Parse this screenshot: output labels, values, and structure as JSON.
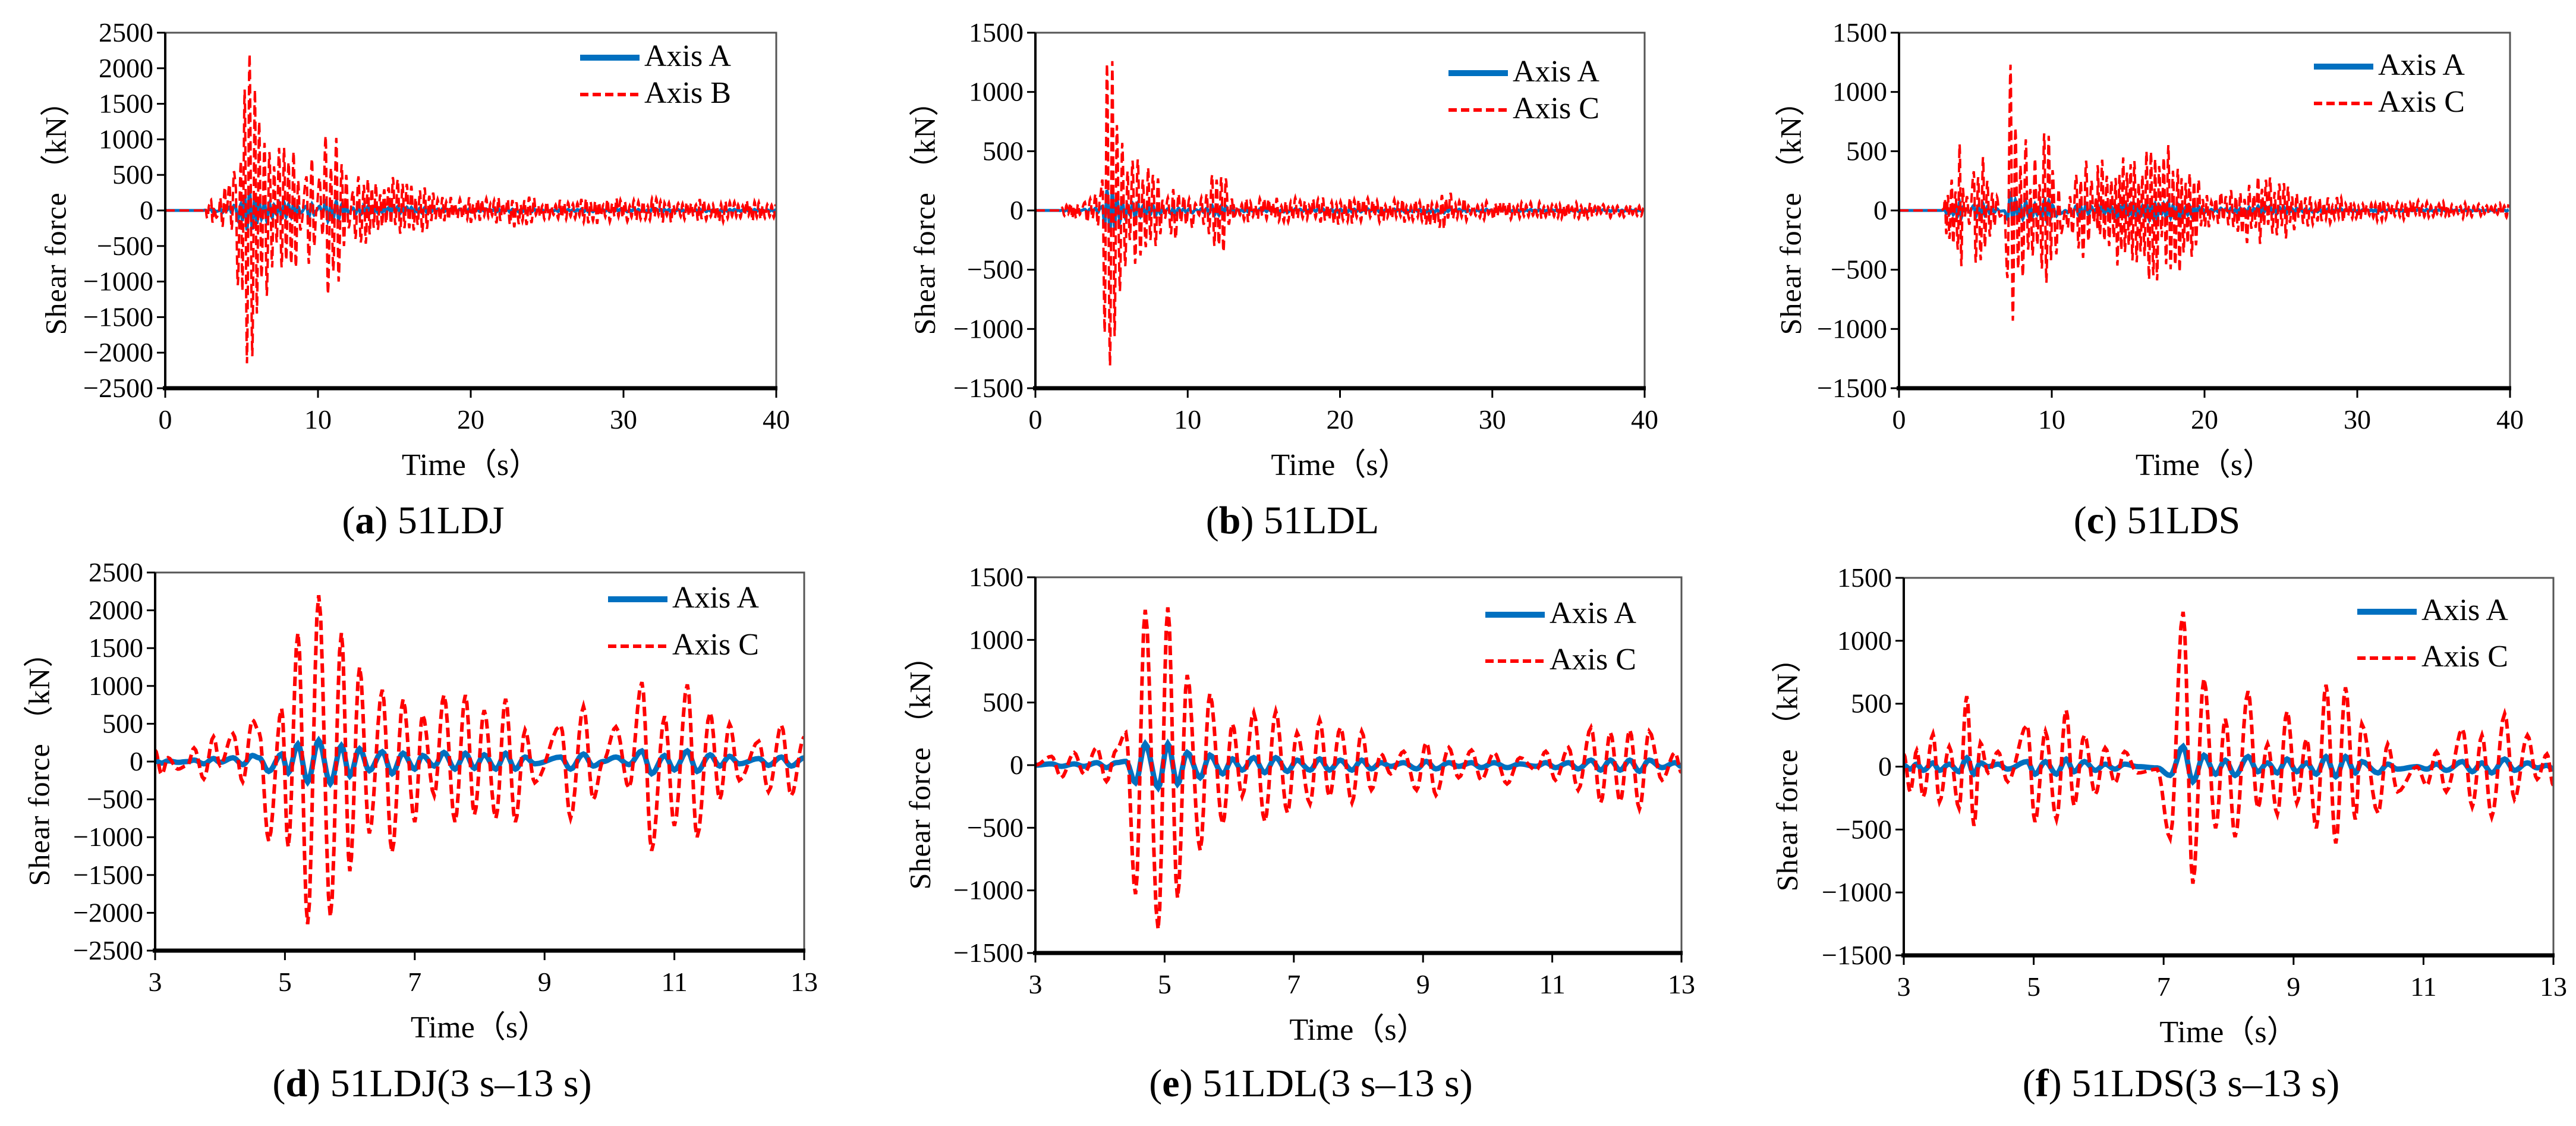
{
  "colors": {
    "axis_a": "#0070c0",
    "axis_c": "#ff0000",
    "frame": "#000000"
  },
  "chart_data": [
    {
      "id": "a",
      "type": "line",
      "caption": {
        "letter": "a",
        "text": "51LDJ"
      },
      "xlabel": "Time（s）",
      "ylabel": "Shear force （kN）",
      "xlim": [
        0,
        40
      ],
      "ylim": [
        -2500,
        2500
      ],
      "xticks": [
        0,
        10,
        20,
        30,
        40
      ],
      "yticks": [
        2500,
        2000,
        1500,
        1000,
        500,
        0,
        -500,
        -1000,
        -1500,
        -2000,
        -2500
      ],
      "legend": {
        "position": "top-right",
        "entries": [
          "Axis A",
          "Axis B"
        ]
      },
      "detail_from": "d",
      "series": [
        {
          "name": "Axis A",
          "style": "solid",
          "amplitude_ratio": 0.13
        },
        {
          "name": "Axis B",
          "style": "dashed",
          "envelope_before": [
            [
              0,
              0
            ],
            [
              2.5,
              0
            ],
            [
              2.7,
              150
            ],
            [
              3,
              150
            ]
          ],
          "envelope_after": [
            [
              13,
              500
            ],
            [
              15,
              500
            ],
            [
              17,
              350
            ],
            [
              18,
              200
            ],
            [
              22,
              180
            ],
            [
              23,
              250
            ],
            [
              25,
              130
            ],
            [
              26,
              200
            ],
            [
              40,
              150
            ]
          ],
          "frequency_hz": 3.5
        }
      ]
    },
    {
      "id": "b",
      "type": "line",
      "caption": {
        "letter": "b",
        "text": "51LDL"
      },
      "xlabel": "Time（s）",
      "ylabel": "Shear force （kN）",
      "xlim": [
        0,
        40
      ],
      "ylim": [
        -1500,
        1500
      ],
      "xticks": [
        0,
        10,
        20,
        30,
        40
      ],
      "yticks": [
        1500,
        1000,
        500,
        0,
        -500,
        -1000,
        -1500
      ],
      "legend": {
        "position": "top-right",
        "entries": [
          "Axis A",
          "Axis C"
        ]
      },
      "detail_from": "e",
      "series": [
        {
          "name": "Axis A",
          "style": "solid",
          "amplitude_ratio": 0.14
        },
        {
          "name": "Axis C",
          "style": "dashed",
          "envelope_before": [
            [
              0,
              0
            ],
            [
              1.5,
              0
            ],
            [
              2,
              60
            ],
            [
              3,
              80
            ]
          ],
          "envelope_after": [
            [
              13,
              100
            ],
            [
              20,
              120
            ],
            [
              25,
              100
            ],
            [
              27,
              170
            ],
            [
              29,
              80
            ],
            [
              40,
              60
            ]
          ],
          "frequency_hz": 3.5
        }
      ]
    },
    {
      "id": "c",
      "type": "line",
      "caption": {
        "letter": "c",
        "text": "51LDS"
      },
      "xlabel": "Time（s）",
      "ylabel": "Shear force （kN）",
      "xlim": [
        0,
        40
      ],
      "ylim": [
        -1500,
        1500
      ],
      "xticks": [
        0,
        10,
        20,
        30,
        40
      ],
      "yticks": [
        1500,
        1000,
        500,
        0,
        -500,
        -1000,
        -1500
      ],
      "legend": {
        "position": "top-right",
        "entries": [
          "Axis A",
          "Axis C"
        ]
      },
      "detail_from": "f",
      "series": [
        {
          "name": "Axis A",
          "style": "solid",
          "amplitude_ratio": 0.13
        },
        {
          "name": "Axis C",
          "style": "dashed",
          "envelope_before": [
            [
              0,
              0
            ],
            [
              2.9,
              0
            ],
            [
              3,
              100
            ]
          ],
          "envelope_after": [
            [
              13,
              400
            ],
            [
              14,
              600
            ],
            [
              15,
              450
            ],
            [
              16,
              650
            ],
            [
              17,
              650
            ],
            [
              18,
              550
            ],
            [
              19,
              500
            ],
            [
              20,
              150
            ],
            [
              22,
              200
            ],
            [
              23,
              300
            ],
            [
              25,
              300
            ],
            [
              26,
              150
            ],
            [
              30,
              100
            ],
            [
              40,
              60
            ]
          ],
          "frequency_hz": 3.5
        }
      ]
    },
    {
      "id": "d",
      "type": "line",
      "caption": {
        "letter": "d",
        "text": "51LDJ(3 s–13 s)"
      },
      "xlabel": "Time（s）",
      "ylabel": "Shear force （kN）",
      "xlim": [
        3,
        13
      ],
      "ylim": [
        -2500,
        2500
      ],
      "xticks": [
        3,
        5,
        7,
        9,
        11,
        13
      ],
      "yticks": [
        2500,
        2000,
        1500,
        1000,
        500,
        0,
        -500,
        -1000,
        -1500,
        -2000,
        -2500
      ],
      "legend": {
        "position": "top-right",
        "entries": [
          "Axis A",
          "Axis C"
        ]
      },
      "t": [
        3.0,
        3.1,
        3.2,
        3.35,
        3.5,
        3.6,
        3.75,
        3.9,
        4.0,
        4.2,
        4.35,
        4.5,
        4.6,
        4.75,
        4.95,
        5.05,
        5.2,
        5.35,
        5.52,
        5.7,
        5.87,
        6.0,
        6.15,
        6.3,
        6.5,
        6.65,
        6.82,
        7.0,
        7.12,
        7.3,
        7.45,
        7.62,
        7.78,
        7.92,
        8.07,
        8.25,
        8.4,
        8.55,
        8.7,
        8.85,
        9.25,
        9.4,
        9.6,
        9.75,
        9.9,
        10.1,
        10.3,
        10.5,
        10.65,
        10.85,
        11.0,
        11.2,
        11.35,
        11.55,
        11.7,
        11.85,
        12.0,
        12.3,
        12.45,
        12.65,
        12.8,
        13.0
      ],
      "series": [
        {
          "name": "Axis A",
          "style": "solid",
          "values": [
            10,
            -20,
            10,
            -10,
            0,
            20,
            -30,
            40,
            -10,
            50,
            -40,
            80,
            50,
            -130,
            100,
            -150,
            230,
            -270,
            280,
            -290,
            210,
            -190,
            170,
            -120,
            130,
            -160,
            110,
            -100,
            80,
            -60,
            120,
            -100,
            110,
            -90,
            90,
            -100,
            110,
            -100,
            60,
            -30,
            60,
            -100,
            100,
            -60,
            0,
            60,
            -40,
            140,
            -160,
            80,
            -110,
            140,
            -130,
            90,
            -60,
            70,
            -30,
            40,
            -50,
            60,
            -60,
            50
          ]
        },
        {
          "name": "Axis C",
          "style": "dashed",
          "values": [
            150,
            -170,
            50,
            -100,
            -50,
            180,
            -230,
            330,
            -50,
            370,
            -270,
            550,
            400,
            -1050,
            700,
            -1130,
            1700,
            -2150,
            2200,
            -2050,
            1700,
            -1450,
            1250,
            -950,
            950,
            -1200,
            820,
            -800,
            620,
            -450,
            880,
            -800,
            880,
            -700,
            680,
            -750,
            830,
            -800,
            420,
            -280,
            480,
            -750,
            730,
            -500,
            0,
            460,
            -350,
            1050,
            -1180,
            600,
            -850,
            1020,
            -1000,
            650,
            -500,
            500,
            -250,
            270,
            -400,
            480,
            -450,
            330
          ]
        }
      ]
    },
    {
      "id": "e",
      "type": "line",
      "caption": {
        "letter": "e",
        "text": "51LDL(3 s–13 s)"
      },
      "xlabel": "Time（s）",
      "ylabel": "Shear force （kN）",
      "xlim": [
        3,
        13
      ],
      "ylim": [
        -1500,
        1500
      ],
      "xticks": [
        3,
        5,
        7,
        9,
        11,
        13
      ],
      "yticks": [
        1500,
        1000,
        500,
        0,
        -500,
        -1000,
        -1500
      ],
      "legend": {
        "position": "top-right",
        "entries": [
          "Axis A",
          "Axis C"
        ]
      },
      "t": [
        3.0,
        3.25,
        3.4,
        3.6,
        3.75,
        3.95,
        4.1,
        4.25,
        4.4,
        4.55,
        4.7,
        4.9,
        5.05,
        5.2,
        5.35,
        5.55,
        5.7,
        5.9,
        6.05,
        6.2,
        6.38,
        6.55,
        6.72,
        6.9,
        7.05,
        7.25,
        7.4,
        7.55,
        7.72,
        7.9,
        8.05,
        8.2,
        8.35,
        8.5,
        8.7,
        8.9,
        9.05,
        9.2,
        9.4,
        9.55,
        9.75,
        9.9,
        10.1,
        10.3,
        10.5,
        10.75,
        10.9,
        11.05,
        11.25,
        11.4,
        11.6,
        11.75,
        11.9,
        12.05,
        12.2,
        12.35,
        12.5,
        12.7,
        12.9,
        13.0
      ],
      "series": [
        {
          "name": "Axis A",
          "style": "solid",
          "values": [
            0,
            10,
            -10,
            10,
            -10,
            20,
            -20,
            20,
            30,
            -140,
            170,
            -180,
            170,
            -150,
            100,
            -100,
            80,
            -70,
            50,
            -40,
            60,
            -60,
            60,
            -50,
            40,
            -40,
            50,
            -40,
            40,
            -40,
            40,
            -30,
            20,
            -10,
            20,
            -30,
            30,
            -30,
            20,
            -10,
            20,
            -20,
            20,
            -20,
            10,
            -10,
            20,
            -20,
            20,
            -30,
            40,
            -40,
            40,
            -40,
            40,
            -50,
            40,
            -20,
            20,
            -10
          ]
        },
        {
          "name": "Axis C",
          "style": "dashed",
          "values": [
            0,
            70,
            -100,
            100,
            -70,
            140,
            -130,
            120,
            260,
            -1030,
            1240,
            -1310,
            1260,
            -1060,
            720,
            -680,
            570,
            -470,
            330,
            -250,
            420,
            -450,
            430,
            -380,
            260,
            -310,
            360,
            -250,
            300,
            -300,
            270,
            -200,
            90,
            -70,
            110,
            -200,
            180,
            -240,
            140,
            -100,
            120,
            -120,
            100,
            -150,
            60,
            -40,
            110,
            -120,
            140,
            -200,
            300,
            -300,
            260,
            -290,
            280,
            -350,
            270,
            -120,
            100,
            -60
          ]
        }
      ]
    },
    {
      "id": "f",
      "type": "line",
      "caption": {
        "letter": "f",
        "text": "51LDS(3 s–13 s)"
      },
      "xlabel": "Time（s）",
      "ylabel": "Shear force （kN）",
      "xlim": [
        3,
        13
      ],
      "ylim": [
        -1500,
        1500
      ],
      "xticks": [
        3,
        5,
        7,
        9,
        11,
        13
      ],
      "yticks": [
        1500,
        1000,
        500,
        0,
        -500,
        -1000,
        -1500
      ],
      "legend": {
        "position": "top-right",
        "entries": [
          "Axis A",
          "Axis C"
        ]
      },
      "t": [
        3.0,
        3.1,
        3.2,
        3.3,
        3.45,
        3.55,
        3.7,
        3.85,
        3.97,
        4.08,
        4.18,
        4.3,
        4.45,
        4.6,
        4.9,
        5.02,
        5.18,
        5.35,
        5.5,
        5.62,
        5.78,
        5.95,
        6.1,
        6.25,
        6.4,
        6.6,
        6.9,
        7.1,
        7.3,
        7.45,
        7.62,
        7.8,
        7.95,
        8.1,
        8.3,
        8.45,
        8.6,
        8.75,
        8.9,
        9.05,
        9.2,
        9.35,
        9.5,
        9.65,
        9.8,
        9.95,
        10.05,
        10.3,
        10.45,
        10.6,
        10.9,
        11.05,
        11.2,
        11.35,
        11.6,
        11.75,
        11.9,
        12.05,
        12.25,
        12.4,
        12.6,
        12.75,
        12.9,
        13.0
      ],
      "series": [
        {
          "name": "Axis A",
          "style": "solid",
          "values": [
            10,
            -20,
            20,
            -30,
            30,
            -30,
            20,
            -40,
            70,
            -60,
            30,
            0,
            20,
            -20,
            40,
            -60,
            40,
            -60,
            60,
            -40,
            40,
            -30,
            20,
            -20,
            20,
            0,
            -10,
            -70,
            160,
            -120,
            90,
            -60,
            50,
            -70,
            80,
            -40,
            30,
            -50,
            60,
            -40,
            30,
            -60,
            80,
            -80,
            80,
            -50,
            40,
            -50,
            20,
            -20,
            0,
            -20,
            20,
            -30,
            40,
            -40,
            30,
            -50,
            60,
            -30,
            30,
            -10,
            10,
            -20
          ]
        },
        {
          "name": "Axis C",
          "style": "dashed",
          "values": [
            100,
            -200,
            130,
            -240,
            260,
            -280,
            160,
            -330,
            560,
            -470,
            190,
            -50,
            120,
            -120,
            330,
            -440,
            280,
            -420,
            450,
            -310,
            250,
            -220,
            150,
            -130,
            120,
            -50,
            -20,
            -570,
            1230,
            -930,
            700,
            -490,
            380,
            -560,
            600,
            -330,
            180,
            -380,
            440,
            -290,
            220,
            -490,
            650,
            -610,
            630,
            -420,
            340,
            -370,
            180,
            -200,
            0,
            -150,
            120,
            -200,
            300,
            -320,
            250,
            -400,
            420,
            -260,
            250,
            -100,
            100,
            -150
          ]
        }
      ]
    }
  ]
}
